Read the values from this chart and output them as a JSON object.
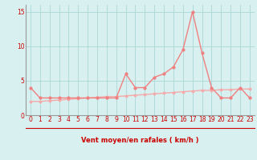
{
  "x": [
    0,
    1,
    2,
    3,
    4,
    5,
    6,
    7,
    8,
    9,
    10,
    11,
    12,
    13,
    14,
    15,
    16,
    17,
    18,
    19,
    20,
    21,
    22,
    23
  ],
  "rafales": [
    4.0,
    2.5,
    2.5,
    2.5,
    2.5,
    2.5,
    2.5,
    2.5,
    2.5,
    2.5,
    6.0,
    4.0,
    4.0,
    5.5,
    6.0,
    7.0,
    9.5,
    15.0,
    9.0,
    4.0,
    2.5,
    2.5,
    4.0,
    2.5
  ],
  "vent_moyen": [
    2.0,
    2.0,
    2.1,
    2.2,
    2.3,
    2.4,
    2.5,
    2.6,
    2.7,
    2.7,
    2.8,
    2.9,
    3.0,
    3.1,
    3.2,
    3.3,
    3.4,
    3.5,
    3.6,
    3.6,
    3.7,
    3.7,
    3.8,
    3.8
  ],
  "rafales_color": "#f08080",
  "vent_color": "#f4aaaa",
  "bg_color": "#d8f0f0",
  "grid_color": "#aad8d8",
  "spine_color": "#999999",
  "axis_label_color": "#cc0000",
  "tick_color": "#cc0000",
  "xlabel": "Vent moyen/en rafales ( km/h )",
  "ylim": [
    0,
    16.0
  ],
  "yticks": [
    0,
    5,
    10,
    15
  ],
  "xticks": [
    0,
    1,
    2,
    3,
    4,
    5,
    6,
    7,
    8,
    9,
    10,
    11,
    12,
    13,
    14,
    15,
    16,
    17,
    18,
    19,
    20,
    21,
    22,
    23
  ],
  "tick_fontsize": 5.5,
  "label_fontsize": 6.0
}
